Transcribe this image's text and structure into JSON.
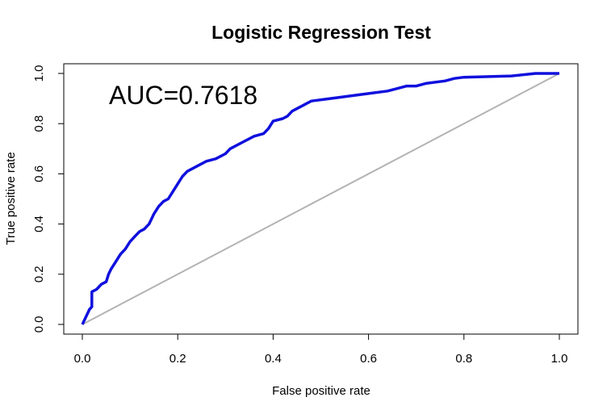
{
  "chart_data": {
    "type": "line",
    "title": "Logistic Regression Test",
    "xlabel": "False positive rate",
    "ylabel": "True positive rate",
    "xlim": [
      0,
      1
    ],
    "ylim": [
      0,
      1
    ],
    "xticks": [
      "0.0",
      "0.2",
      "0.4",
      "0.6",
      "0.8",
      "1.0"
    ],
    "yticks": [
      "0.0",
      "0.2",
      "0.4",
      "0.6",
      "0.8",
      "1.0"
    ],
    "grid": false,
    "annotation": "AUC=0.7618",
    "colors": {
      "roc": "#1010dd",
      "diagonal": "#b3b3b3",
      "axes": "#000000"
    },
    "series": [
      {
        "x": [
          0.0,
          0.005,
          0.01,
          0.015,
          0.02,
          0.02,
          0.03,
          0.04,
          0.05,
          0.055,
          0.06,
          0.07,
          0.08,
          0.09,
          0.1,
          0.11,
          0.12,
          0.13,
          0.14,
          0.15,
          0.16,
          0.17,
          0.18,
          0.19,
          0.2,
          0.21,
          0.22,
          0.23,
          0.24,
          0.26,
          0.28,
          0.3,
          0.31,
          0.32,
          0.34,
          0.36,
          0.38,
          0.39,
          0.4,
          0.42,
          0.43,
          0.44,
          0.46,
          0.48,
          0.52,
          0.56,
          0.6,
          0.64,
          0.66,
          0.68,
          0.7,
          0.72,
          0.76,
          0.78,
          0.8,
          0.9,
          0.95,
          1.0
        ],
        "y": [
          0.0,
          0.02,
          0.04,
          0.06,
          0.07,
          0.13,
          0.14,
          0.16,
          0.17,
          0.2,
          0.22,
          0.25,
          0.28,
          0.3,
          0.33,
          0.35,
          0.37,
          0.38,
          0.4,
          0.44,
          0.47,
          0.49,
          0.5,
          0.53,
          0.56,
          0.59,
          0.61,
          0.62,
          0.63,
          0.65,
          0.66,
          0.68,
          0.7,
          0.71,
          0.73,
          0.75,
          0.76,
          0.78,
          0.81,
          0.82,
          0.83,
          0.85,
          0.87,
          0.89,
          0.9,
          0.91,
          0.92,
          0.93,
          0.94,
          0.95,
          0.95,
          0.96,
          0.97,
          0.98,
          0.985,
          0.99,
          1.0,
          1.0
        ]
      },
      {
        "x": [
          0,
          1
        ],
        "y": [
          0,
          1
        ]
      }
    ]
  }
}
